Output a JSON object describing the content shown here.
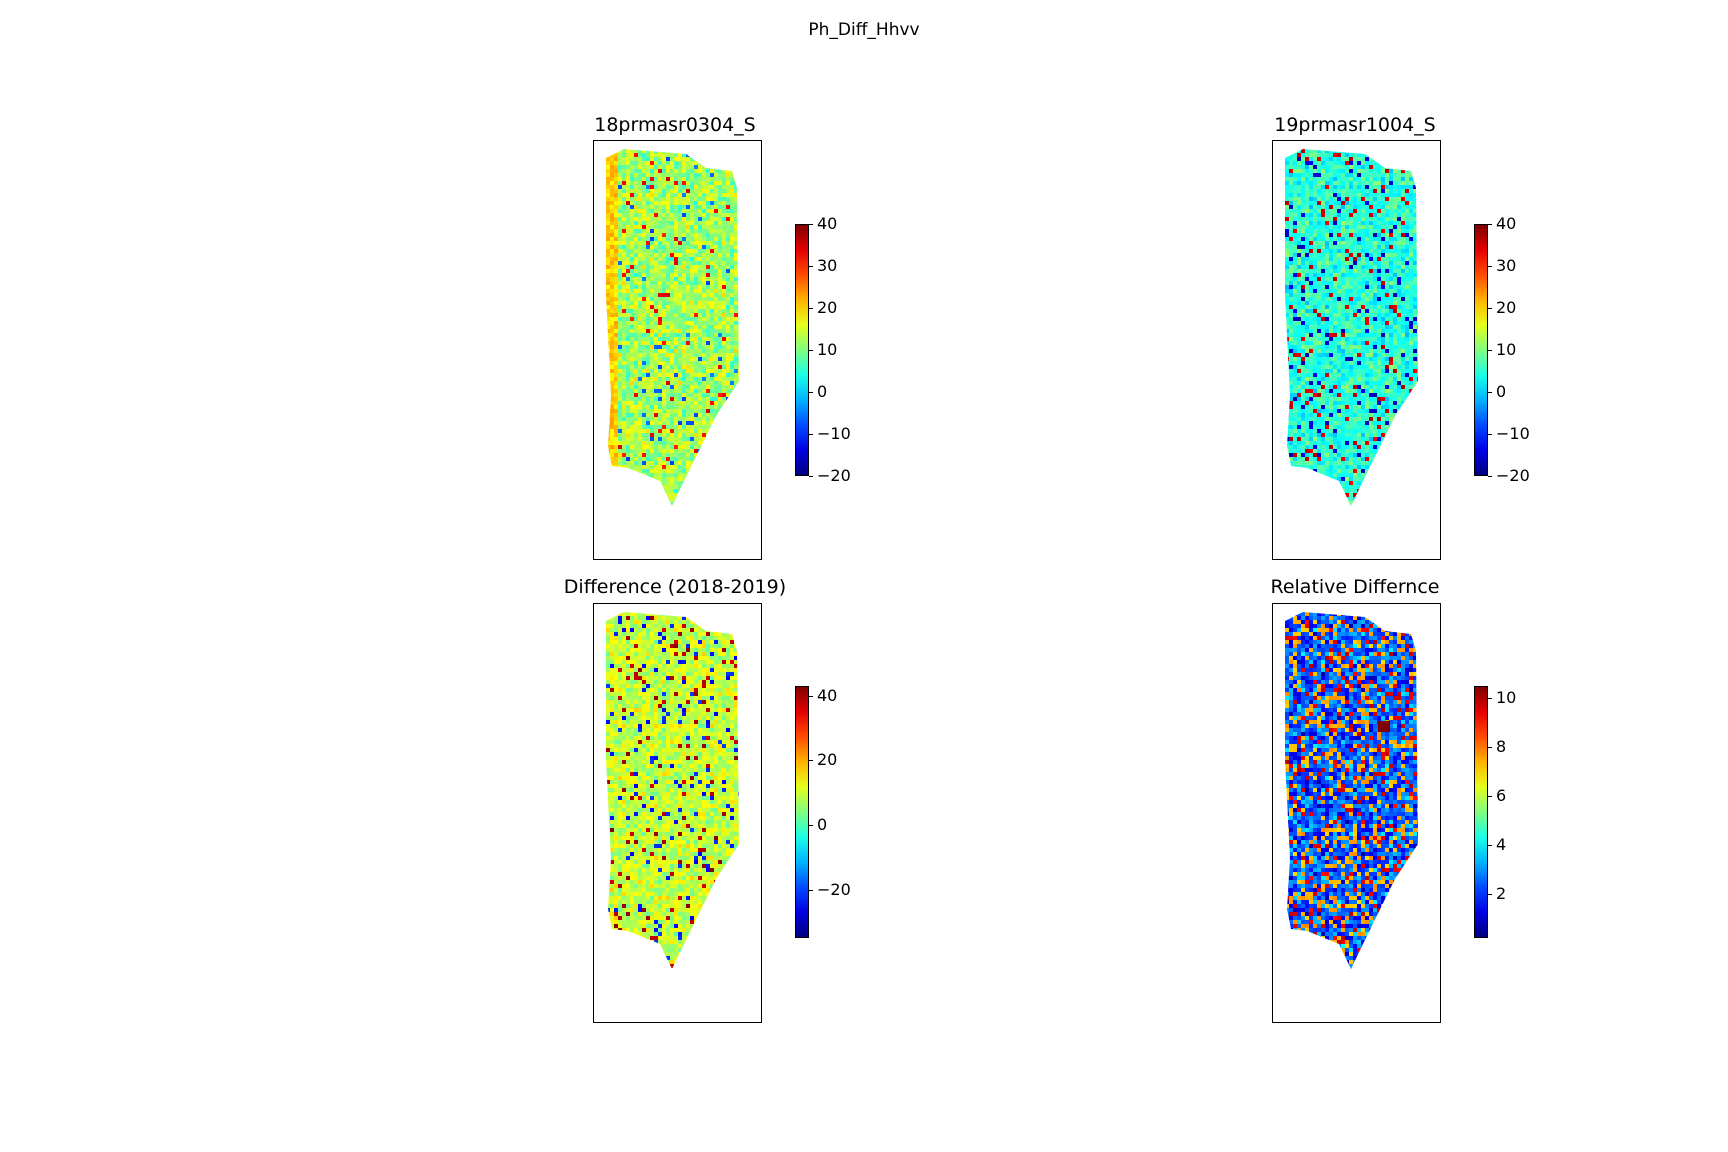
{
  "figure": {
    "suptitle": "Ph_Diff_Hhvv"
  },
  "panels": [
    {
      "title": "18prmasr0304_S",
      "palette": "mostly-green-yellow",
      "colorbar": {
        "min": -20,
        "max": 40,
        "ticks": [
          "40",
          "30",
          "20",
          "10",
          "0",
          "−10",
          "−20"
        ],
        "tick_values": [
          40,
          30,
          20,
          10,
          0,
          -10,
          -20
        ]
      }
    },
    {
      "title": "19prmasr1004_S",
      "palette": "cyan-with-red-blue-streaks",
      "colorbar": {
        "min": -20,
        "max": 40,
        "ticks": [
          "40",
          "30",
          "20",
          "10",
          "0",
          "−10",
          "−20"
        ],
        "tick_values": [
          40,
          30,
          20,
          10,
          0,
          -10,
          -20
        ]
      }
    },
    {
      "title": "Difference (2018-2019)",
      "palette": "yellow-green-with-streaks",
      "colorbar": {
        "min": -35,
        "max": 43,
        "ticks": [
          "40",
          "20",
          "0",
          "−20"
        ],
        "tick_values": [
          40,
          20,
          0,
          -20
        ]
      }
    },
    {
      "title": "Relative Differnce",
      "palette": "blue-noise-with-yellow-red",
      "colorbar": {
        "min": 0.2,
        "max": 10.5,
        "ticks": [
          "10",
          "8",
          "6",
          "4",
          "2"
        ],
        "tick_values": [
          10,
          8,
          6,
          4,
          2
        ]
      }
    }
  ],
  "chart_data": {
    "type": "heatmap",
    "title": "Ph_Diff_Hhvv",
    "subplots": [
      {
        "title": "18prmasr0304_S",
        "colormap": "jet",
        "clim": [
          -20,
          40
        ]
      },
      {
        "title": "19prmasr1004_S",
        "colormap": "jet",
        "clim": [
          -20,
          40
        ]
      },
      {
        "title": "Difference (2018-2019)",
        "colormap": "jet",
        "clim": [
          -35,
          43
        ]
      },
      {
        "title": "Relative Differnce",
        "colormap": "jet",
        "clim": [
          0.2,
          10.5
        ]
      }
    ]
  }
}
